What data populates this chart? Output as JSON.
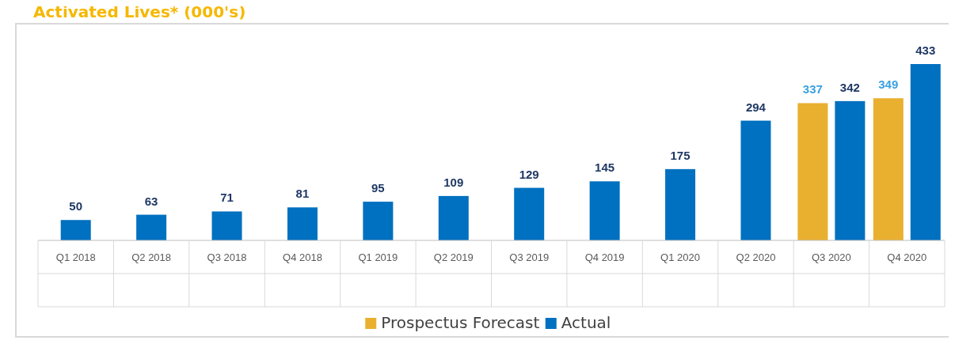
{
  "chart_data": {
    "type": "bar",
    "title": "Activated Lives* (000's)",
    "categories": [
      "Q1 2018",
      "Q2 2018",
      "Q3 2018",
      "Q4 2018",
      "Q1 2019",
      "Q2 2019",
      "Q3 2019",
      "Q4 2019",
      "Q1 2020",
      "Q2 2020",
      "Q3 2020",
      "Q4 2020"
    ],
    "series": [
      {
        "name": "Prospectus Forecast",
        "color": "#e9b02f",
        "values": [
          null,
          null,
          null,
          null,
          null,
          null,
          null,
          null,
          null,
          null,
          337,
          349
        ]
      },
      {
        "name": "Actual",
        "color": "#0070c0",
        "values": [
          50,
          63,
          71,
          81,
          95,
          109,
          129,
          145,
          175,
          294,
          342,
          433
        ]
      }
    ],
    "data_labels": true,
    "legend": "bottom"
  }
}
